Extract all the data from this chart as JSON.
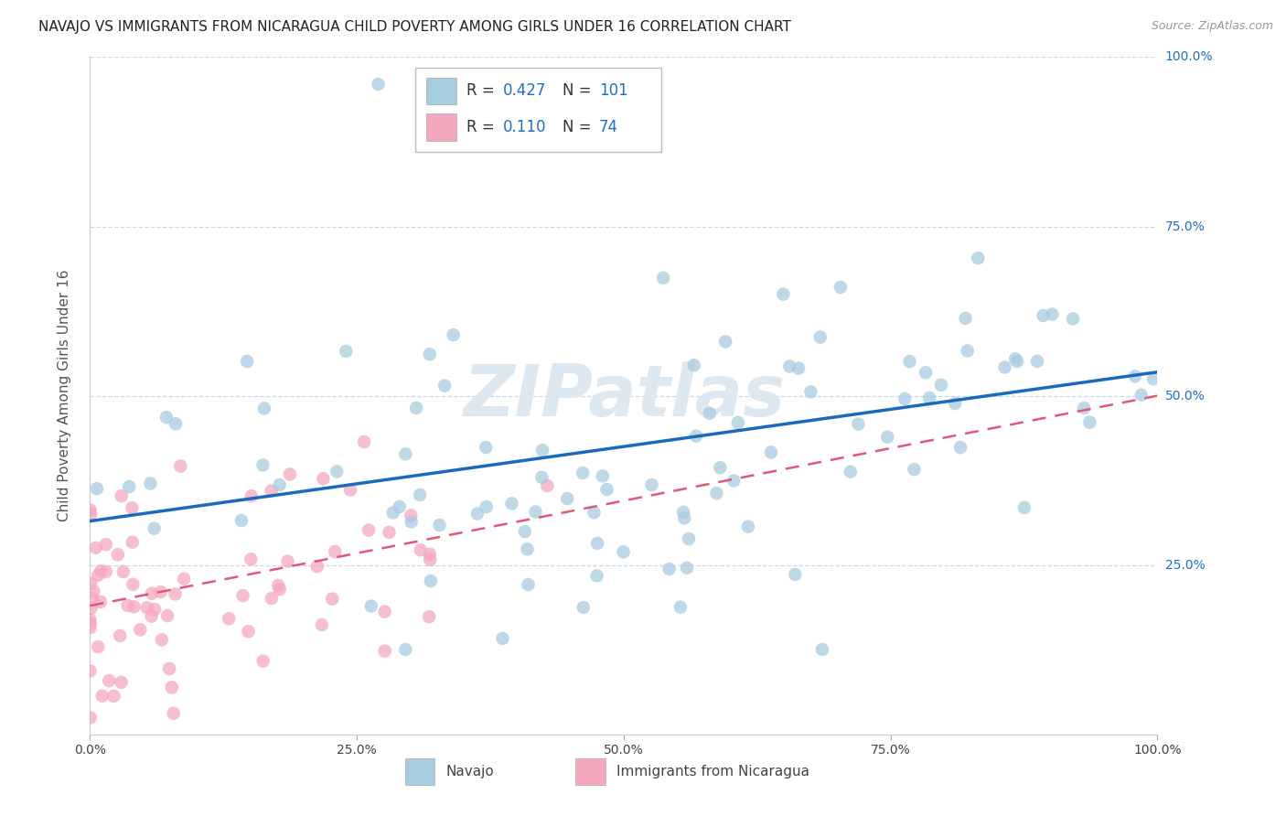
{
  "title": "NAVAJO VS IMMIGRANTS FROM NICARAGUA CHILD POVERTY AMONG GIRLS UNDER 16 CORRELATION CHART",
  "source": "Source: ZipAtlas.com",
  "ylabel": "Child Poverty Among Girls Under 16",
  "xlim": [
    0,
    1
  ],
  "ylim": [
    0,
    1
  ],
  "navajo_R": 0.427,
  "navajo_N": 101,
  "nicaragua_R": 0.11,
  "nicaragua_N": 74,
  "navajo_color": "#a8cce0",
  "nicaragua_color": "#f4a8be",
  "navajo_line_color": "#1a6bbd",
  "nicaragua_line_color": "#e05878",
  "watermark": "ZIPatlas",
  "watermark_color": "#dde8f0",
  "background_color": "#ffffff",
  "grid_color": "#c8d8e8",
  "title_fontsize": 11,
  "axis_label_fontsize": 11,
  "tick_fontsize": 10,
  "right_tick_color": "#2070c0",
  "navajo_line_start_y": 0.315,
  "navajo_line_end_y": 0.535,
  "nicaragua_line_start_y": 0.19,
  "nicaragua_line_end_y": 0.5
}
